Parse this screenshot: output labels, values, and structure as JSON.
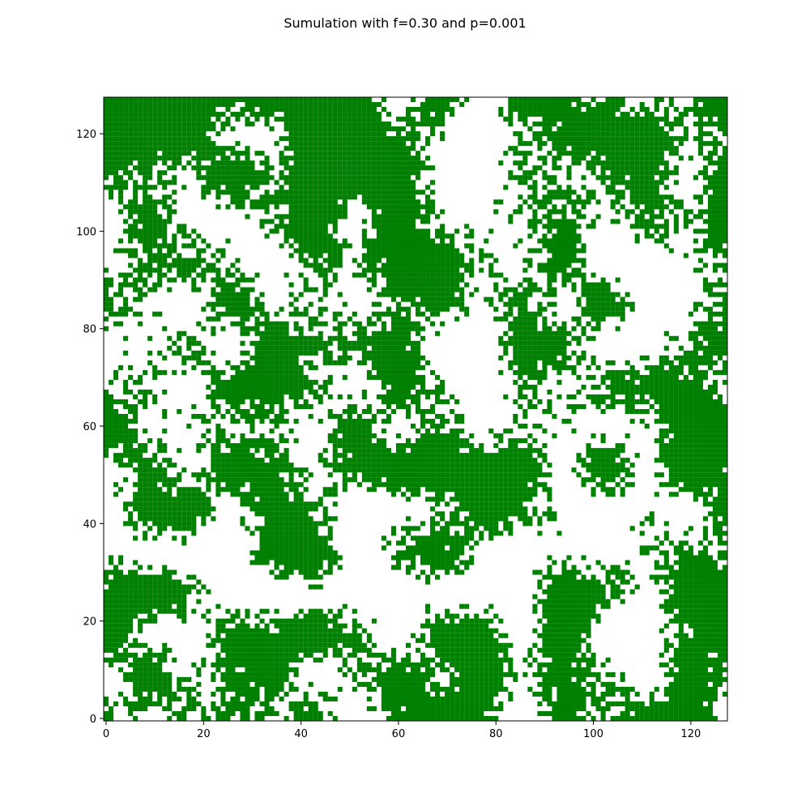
{
  "chart_data": {
    "type": "heatmap",
    "title": "Sumulation with f=0.30 and p=0.001",
    "xlabel": "",
    "ylabel": "",
    "grid_size": 128,
    "xlim": [
      -0.5,
      127.5
    ],
    "ylim": [
      -0.5,
      127.5
    ],
    "x_ticks": [
      0,
      20,
      40,
      60,
      80,
      100,
      120
    ],
    "y_ticks": [
      0,
      20,
      40,
      60,
      80,
      100,
      120
    ],
    "grid": false,
    "tree_color": "#008000",
    "empty_color": "#ffffff",
    "tree_density_estimate": 0.55
  }
}
